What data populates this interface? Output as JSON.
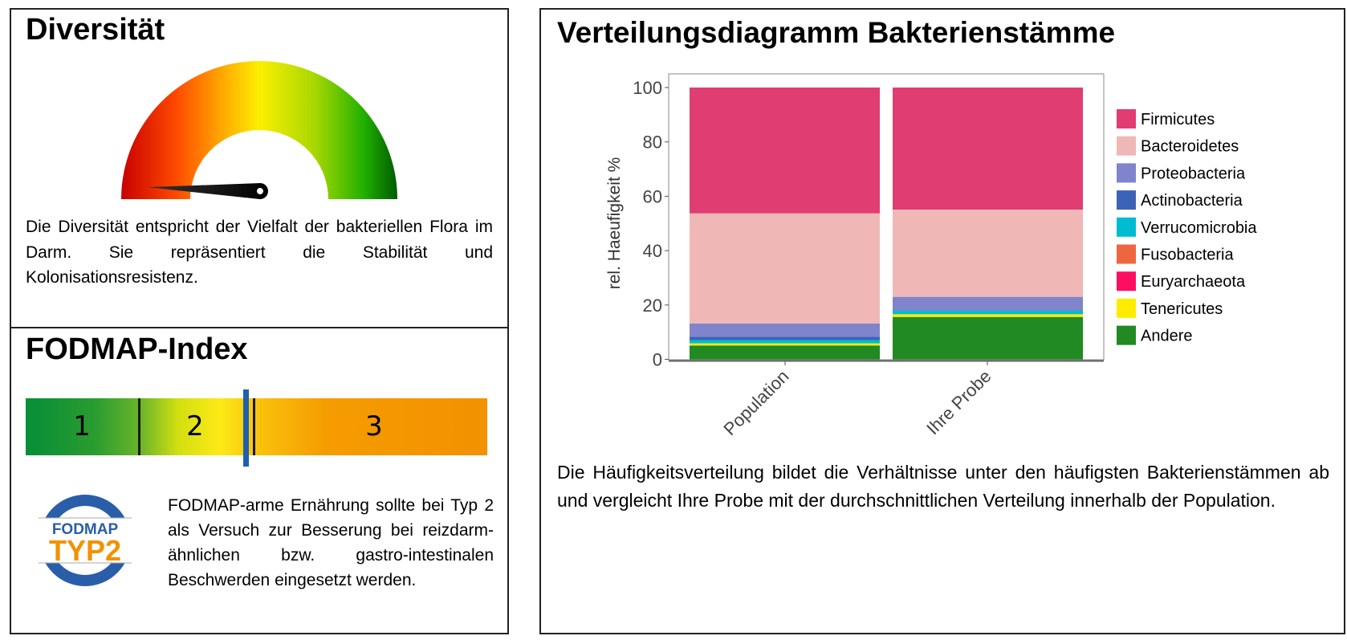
{
  "diversity": {
    "title": "Diversität",
    "gauge_value": 0.03,
    "description": "Die Diversität entspricht der Vielfalt der bakteriellen Flora im Darm. Sie repräsentiert die Stabilität und Kolonisationsresistenz."
  },
  "fodmap": {
    "title": "FODMAP-Index",
    "scale_labels": [
      "1",
      "2",
      "3"
    ],
    "marker_value": 2.4,
    "logo_text_top": "FODMAP",
    "logo_text_bottom": "TYP2",
    "description": "FODMAP-arme Ernährung sollte bei Typ 2 als Versuch zur Besserung bei reizdarm- ähnlichen bzw. gastro-intestinalen Beschwerden eingesetzt werden."
  },
  "distribution": {
    "title": "Verteilungsdiagramm Bakterienstämme",
    "description": "Die Häufigkeitsverteilung bildet die Verhältnisse unter den häufigsten Bakterienstämmen ab und vergleicht Ihre Probe mit der durchschnittlichen Verteilung innerhalb der Population."
  },
  "chart_data": {
    "type": "bar",
    "stacked": true,
    "title": "",
    "xlabel": "",
    "ylabel": "rel. Haeufigkeit %",
    "ylim": [
      0,
      100
    ],
    "yticks": [
      "0",
      "20",
      "40",
      "60",
      "80",
      "100"
    ],
    "categories": [
      "Population",
      "Ihre Probe"
    ],
    "legend_position": "right",
    "series": [
      {
        "name": "Firmicutes",
        "color": "#e03d73",
        "values": [
          46.3,
          44.9
        ]
      },
      {
        "name": "Bacteroidetes",
        "color": "#efb8b6",
        "values": [
          40.5,
          32.1
        ]
      },
      {
        "name": "Proteobacteria",
        "color": "#7f84cc",
        "values": [
          4.9,
          4.9
        ]
      },
      {
        "name": "Actinobacteria",
        "color": "#3d63b8",
        "values": [
          1.2,
          0.2
        ]
      },
      {
        "name": "Verrucomicrobia",
        "color": "#00bcd0",
        "values": [
          1.2,
          1.3
        ]
      },
      {
        "name": "Fusobacteria",
        "color": "#ee6640",
        "values": [
          0,
          0
        ]
      },
      {
        "name": "Euryarchaeota",
        "color": "#fe0e60",
        "values": [
          0,
          0
        ]
      },
      {
        "name": "Tenericutes",
        "color": "#fdec00",
        "values": [
          0.8,
          1.0
        ]
      },
      {
        "name": "Andere",
        "color": "#218a22",
        "values": [
          5.1,
          15.6
        ]
      }
    ]
  }
}
